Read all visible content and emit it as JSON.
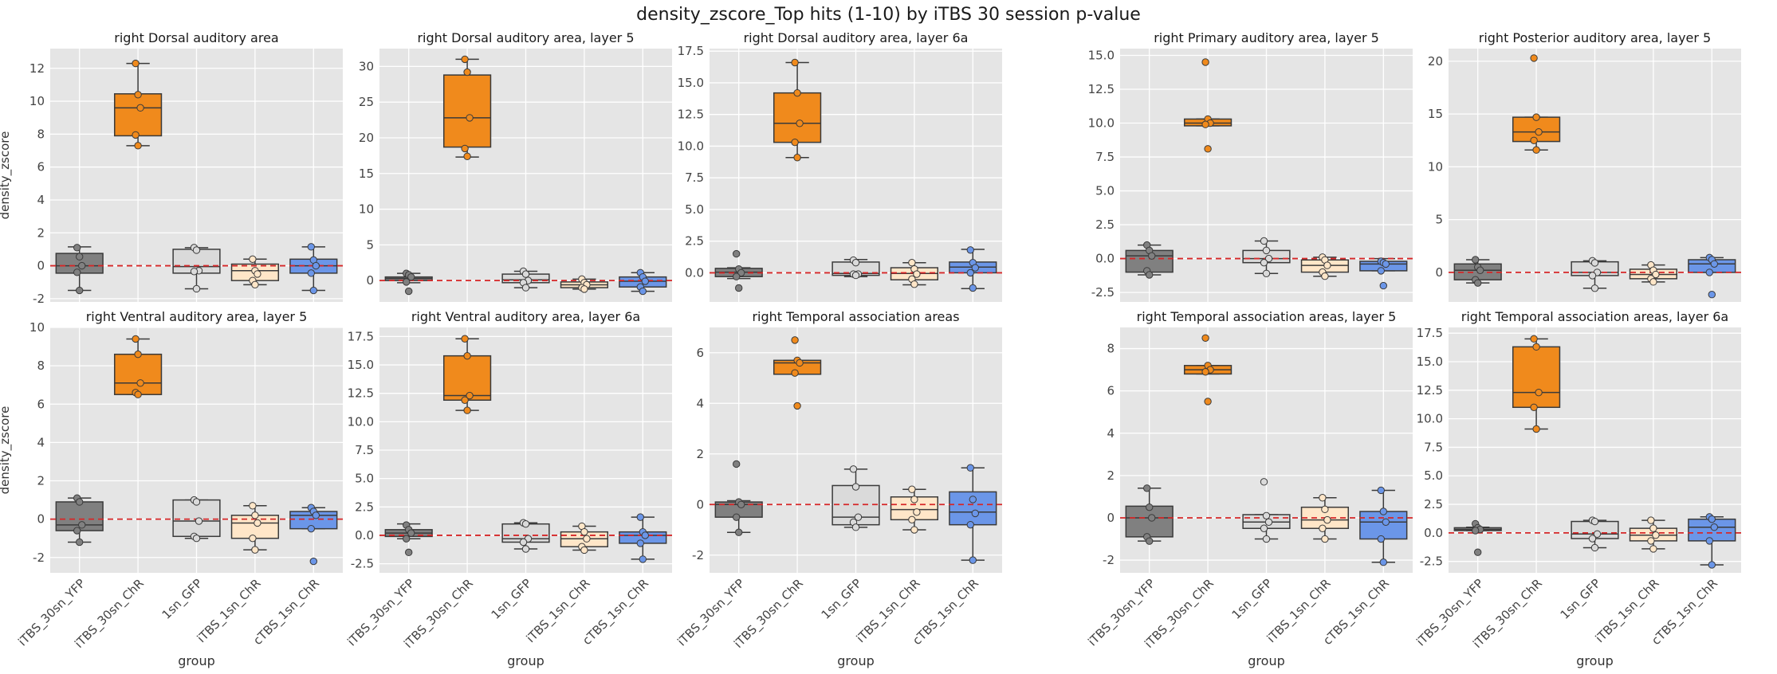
{
  "figure": {
    "title": "density_zscore_Top hits (1-10) by iTBS 30 session p-value",
    "colors": {
      "panel_bg": "#e5e5e5",
      "grid": "#ffffff",
      "zero_line": "#d62728",
      "box_edge": "#3a3a3a",
      "groups": [
        "#808080",
        "#f08a1c",
        "#dadada",
        "#ffe6c8",
        "#6b96e8"
      ]
    }
  },
  "chart_data": [
    {
      "type": "box",
      "title": "right Dorsal auditory area",
      "xlabel": "",
      "ylabel": "density_zscore",
      "categories": [
        "iTBS_30sn_YFP",
        "iTBS_30sn_ChR",
        "1sn_GFP",
        "iTBS_1sn_ChR",
        "cTBS_1sn_ChR"
      ],
      "ylim": [
        -2.2,
        13.2
      ],
      "yticks": [
        -2,
        0,
        2,
        4,
        6,
        8,
        10,
        12
      ],
      "show_xticklabels": false,
      "show_xlabel": false,
      "boxes": [
        {
          "q1": -0.45,
          "median": 0.0,
          "q3": 0.75,
          "wlo": -1.5,
          "whi": 1.15
        },
        {
          "q1": 7.9,
          "median": 9.6,
          "q3": 10.45,
          "wlo": 7.3,
          "whi": 12.3
        },
        {
          "q1": -0.45,
          "median": -0.05,
          "q3": 1.0,
          "wlo": -1.4,
          "whi": 1.1
        },
        {
          "q1": -0.9,
          "median": -0.3,
          "q3": 0.1,
          "wlo": -1.15,
          "whi": 0.4
        },
        {
          "q1": -0.45,
          "median": 0.0,
          "q3": 0.4,
          "wlo": -1.5,
          "whi": 1.15
        }
      ],
      "points": [
        [
          1.1,
          0.55,
          0.0,
          -0.4,
          -1.5
        ],
        [
          12.3,
          10.4,
          9.6,
          7.95,
          7.3
        ],
        [
          1.1,
          0.95,
          -0.3,
          -0.35,
          -1.4
        ],
        [
          0.4,
          -0.3,
          -0.5,
          -0.9,
          -1.15
        ],
        [
          1.15,
          0.35,
          0.0,
          -0.45,
          -1.5
        ]
      ]
    },
    {
      "type": "box",
      "title": "right Dorsal auditory area, layer 5",
      "xlabel": "",
      "ylabel": "",
      "categories": [
        "iTBS_30sn_YFP",
        "iTBS_30sn_ChR",
        "1sn_GFP",
        "iTBS_1sn_ChR",
        "cTBS_1sn_ChR"
      ],
      "ylim": [
        -3,
        32.5
      ],
      "yticks": [
        0,
        5,
        10,
        15,
        20,
        25,
        30
      ],
      "show_xticklabels": false,
      "show_xlabel": false,
      "boxes": [
        {
          "q1": 0.0,
          "median": 0.3,
          "q3": 0.5,
          "wlo": -0.3,
          "whi": 1.0
        },
        {
          "q1": 18.7,
          "median": 22.8,
          "q3": 28.8,
          "wlo": 17.3,
          "whi": 31.0
        },
        {
          "q1": -0.3,
          "median": 0.1,
          "q3": 0.9,
          "wlo": -1.0,
          "whi": 1.3
        },
        {
          "q1": -1.0,
          "median": -0.6,
          "q3": -0.2,
          "wlo": -1.2,
          "whi": 0.2
        },
        {
          "q1": -0.9,
          "median": -0.1,
          "q3": 0.5,
          "wlo": -1.5,
          "whi": 1.1
        }
      ],
      "points": [
        [
          1.0,
          0.8,
          0.5,
          -0.2,
          -1.5
        ],
        [
          31.0,
          29.2,
          22.8,
          18.5,
          17.4
        ],
        [
          1.3,
          0.9,
          0.0,
          -0.3,
          -1.0
        ],
        [
          0.2,
          -0.3,
          -0.6,
          -1.0,
          -1.2
        ],
        [
          1.1,
          0.5,
          -0.1,
          -0.9,
          -1.5
        ]
      ]
    },
    {
      "type": "box",
      "title": "right Dorsal auditory area, layer 6a",
      "xlabel": "",
      "ylabel": "",
      "categories": [
        "iTBS_30sn_YFP",
        "iTBS_30sn_ChR",
        "1sn_GFP",
        "iTBS_1sn_ChR",
        "cTBS_1sn_ChR"
      ],
      "ylim": [
        -2.3,
        17.7
      ],
      "yticks": [
        0.0,
        2.5,
        5.0,
        7.5,
        10.0,
        12.5,
        15.0,
        17.5
      ],
      "show_xticklabels": false,
      "show_xlabel": false,
      "boxes": [
        {
          "q1": -0.3,
          "median": 0.05,
          "q3": 0.35,
          "wlo": -0.45,
          "whi": 0.4
        },
        {
          "q1": 10.3,
          "median": 11.8,
          "q3": 14.2,
          "wlo": 9.1,
          "whi": 16.6
        },
        {
          "q1": -0.2,
          "median": -0.05,
          "q3": 0.85,
          "wlo": -0.3,
          "whi": 1.05
        },
        {
          "q1": -0.55,
          "median": -0.05,
          "q3": 0.4,
          "wlo": -0.95,
          "whi": 0.8
        },
        {
          "q1": 0.0,
          "median": 0.45,
          "q3": 0.85,
          "wlo": -1.25,
          "whi": 1.85
        }
      ],
      "points": [
        [
          1.5,
          0.3,
          0.0,
          -0.3,
          -1.2
        ],
        [
          16.6,
          14.2,
          11.8,
          10.3,
          9.1
        ],
        [
          1.0,
          0.8,
          -0.1,
          -0.1,
          -0.2
        ],
        [
          0.8,
          0.3,
          -0.1,
          -0.5,
          -0.9
        ],
        [
          1.8,
          0.8,
          0.4,
          0.0,
          -1.2
        ]
      ]
    },
    {
      "type": "box",
      "title": "right Primary auditory area, layer 5",
      "xlabel": "",
      "ylabel": "",
      "categories": [
        "iTBS_30sn_YFP",
        "iTBS_30sn_ChR",
        "1sn_GFP",
        "iTBS_1sn_ChR",
        "cTBS_1sn_ChR"
      ],
      "ylim": [
        -3.2,
        15.5
      ],
      "yticks": [
        -2.5,
        0.0,
        2.5,
        5.0,
        7.5,
        10.0,
        12.5,
        15.0
      ],
      "show_xticklabels": false,
      "show_xlabel": false,
      "boxes": [
        {
          "q1": -1.0,
          "median": 0.2,
          "q3": 0.6,
          "wlo": -1.2,
          "whi": 1.0
        },
        {
          "q1": 9.8,
          "median": 10.0,
          "q3": 10.3,
          "wlo": 9.8,
          "whi": 10.3
        },
        {
          "q1": -0.3,
          "median": 0.0,
          "q3": 0.6,
          "wlo": -1.1,
          "whi": 1.3
        },
        {
          "q1": -1.0,
          "median": -0.5,
          "q3": -0.1,
          "wlo": -1.3,
          "whi": 0.1
        },
        {
          "q1": -0.9,
          "median": -0.4,
          "q3": -0.2,
          "wlo": -0.9,
          "whi": 0.0
        }
      ],
      "points": [
        [
          1.0,
          0.6,
          0.2,
          -0.9,
          -1.2
        ],
        [
          14.5,
          10.3,
          10.0,
          9.9,
          8.1
        ],
        [
          1.3,
          0.6,
          0.0,
          -0.3,
          -1.1
        ],
        [
          0.1,
          -0.1,
          -0.5,
          -1.0,
          -1.3
        ],
        [
          -0.2,
          -0.3,
          -0.4,
          -0.9,
          -2.0
        ]
      ]
    },
    {
      "type": "box",
      "title": "right Posterior auditory area, layer 5",
      "xlabel": "",
      "ylabel": "",
      "categories": [
        "iTBS_30sn_YFP",
        "iTBS_30sn_ChR",
        "1sn_GFP",
        "iTBS_1sn_ChR",
        "cTBS_1sn_ChR"
      ],
      "ylim": [
        -2.8,
        21.2
      ],
      "yticks": [
        0,
        5,
        10,
        15,
        20
      ],
      "show_xticklabels": false,
      "show_xlabel": false,
      "boxes": [
        {
          "q1": -0.7,
          "median": 0.2,
          "q3": 0.8,
          "wlo": -1.0,
          "whi": 1.2
        },
        {
          "q1": 12.4,
          "median": 13.3,
          "q3": 14.7,
          "wlo": 11.6,
          "whi": 14.7
        },
        {
          "q1": -0.3,
          "median": 0.0,
          "q3": 1.0,
          "wlo": -1.5,
          "whi": 1.1
        },
        {
          "q1": -0.6,
          "median": -0.2,
          "q3": 0.3,
          "wlo": -0.9,
          "whi": 0.7
        },
        {
          "q1": 0.0,
          "median": 0.8,
          "q3": 1.2,
          "wlo": 0.0,
          "whi": 1.4
        }
      ],
      "points": [
        [
          1.2,
          0.5,
          0.2,
          -0.7,
          -1.0
        ],
        [
          20.3,
          14.7,
          13.3,
          12.5,
          11.6
        ],
        [
          1.1,
          0.9,
          0.0,
          -0.3,
          -1.5
        ],
        [
          0.7,
          0.2,
          -0.2,
          -0.6,
          -0.9
        ],
        [
          1.4,
          1.2,
          0.8,
          0.0,
          -2.1
        ]
      ]
    },
    {
      "type": "box",
      "title": "right Ventral auditory area, layer 5",
      "xlabel": "group",
      "ylabel": "density_zscore",
      "categories": [
        "iTBS_30sn_YFP",
        "iTBS_30sn_ChR",
        "1sn_GFP",
        "iTBS_1sn_ChR",
        "cTBS_1sn_ChR"
      ],
      "ylim": [
        -2.8,
        10.0
      ],
      "yticks": [
        -2,
        0,
        2,
        4,
        6,
        8,
        10
      ],
      "show_xticklabels": true,
      "show_xlabel": true,
      "boxes": [
        {
          "q1": -0.6,
          "median": -0.3,
          "q3": 0.9,
          "wlo": -1.2,
          "whi": 1.1
        },
        {
          "q1": 6.5,
          "median": 7.1,
          "q3": 8.6,
          "wlo": 6.5,
          "whi": 9.4
        },
        {
          "q1": -0.9,
          "median": -0.1,
          "q3": 1.0,
          "wlo": -1.0,
          "whi": 1.0
        },
        {
          "q1": -1.0,
          "median": -0.2,
          "q3": 0.2,
          "wlo": -1.6,
          "whi": 0.7
        },
        {
          "q1": -0.5,
          "median": 0.2,
          "q3": 0.4,
          "wlo": -0.5,
          "whi": 0.6
        }
      ],
      "points": [
        [
          1.1,
          0.9,
          -0.3,
          -0.6,
          -1.2
        ],
        [
          9.4,
          8.6,
          7.1,
          6.6,
          6.5
        ],
        [
          1.0,
          0.9,
          -0.1,
          -0.9,
          -1.0
        ],
        [
          0.7,
          0.2,
          -0.2,
          -1.0,
          -1.6
        ],
        [
          0.6,
          0.4,
          0.2,
          -0.5,
          -2.2
        ]
      ]
    },
    {
      "type": "box",
      "title": "right Ventral auditory area, layer 6a",
      "xlabel": "group",
      "ylabel": "",
      "categories": [
        "iTBS_30sn_YFP",
        "iTBS_30sn_ChR",
        "1sn_GFP",
        "iTBS_1sn_ChR",
        "cTBS_1sn_ChR"
      ],
      "ylim": [
        -3.3,
        18.3
      ],
      "yticks": [
        -2.5,
        0.0,
        2.5,
        5.0,
        7.5,
        10.0,
        12.5,
        15.0,
        17.5
      ],
      "show_xticklabels": true,
      "show_xlabel": true,
      "boxes": [
        {
          "q1": -0.1,
          "median": 0.2,
          "q3": 0.5,
          "wlo": -0.3,
          "whi": 1.0
        },
        {
          "q1": 11.9,
          "median": 12.3,
          "q3": 15.8,
          "wlo": 11.0,
          "whi": 17.3
        },
        {
          "q1": -0.6,
          "median": -0.3,
          "q3": 1.0,
          "wlo": -1.2,
          "whi": 1.1
        },
        {
          "q1": -1.0,
          "median": -0.3,
          "q3": 0.3,
          "wlo": -1.3,
          "whi": 0.8
        },
        {
          "q1": -0.7,
          "median": 0.0,
          "q3": 0.3,
          "wlo": -2.1,
          "whi": 1.6
        }
      ],
      "points": [
        [
          0.9,
          0.5,
          0.2,
          -0.3,
          -1.5
        ],
        [
          17.3,
          15.8,
          12.3,
          11.9,
          11.0
        ],
        [
          1.1,
          1.0,
          -0.3,
          -0.6,
          -1.2
        ],
        [
          0.8,
          0.3,
          -0.3,
          -1.0,
          -1.3
        ],
        [
          1.6,
          0.3,
          0.0,
          -0.7,
          -2.1
        ]
      ]
    },
    {
      "type": "box",
      "title": "right Temporal association areas",
      "xlabel": "group",
      "ylabel": "",
      "categories": [
        "iTBS_30sn_YFP",
        "iTBS_30sn_ChR",
        "1sn_GFP",
        "iTBS_1sn_ChR",
        "cTBS_1sn_ChR"
      ],
      "ylim": [
        -2.7,
        7.0
      ],
      "yticks": [
        -2,
        0,
        2,
        4,
        6
      ],
      "show_xticklabels": true,
      "show_xlabel": true,
      "boxes": [
        {
          "q1": -0.5,
          "median": 0.0,
          "q3": 0.1,
          "wlo": -1.1,
          "whi": 0.15
        },
        {
          "q1": 5.15,
          "median": 5.6,
          "q3": 5.7,
          "wlo": 5.15,
          "whi": 5.7
        },
        {
          "q1": -0.8,
          "median": -0.5,
          "q3": 0.75,
          "wlo": -0.9,
          "whi": 1.4
        },
        {
          "q1": -0.6,
          "median": -0.2,
          "q3": 0.3,
          "wlo": -1.0,
          "whi": 0.6
        },
        {
          "q1": -0.8,
          "median": -0.3,
          "q3": 0.5,
          "wlo": -2.2,
          "whi": 1.45
        }
      ],
      "points": [
        [
          1.6,
          0.1,
          0.0,
          -0.5,
          -1.1
        ],
        [
          6.5,
          5.7,
          5.6,
          5.2,
          3.9
        ],
        [
          1.4,
          0.7,
          -0.5,
          -0.7,
          -0.9
        ],
        [
          0.6,
          0.2,
          -0.3,
          -0.6,
          -1.0
        ],
        [
          1.45,
          0.2,
          -0.35,
          -0.8,
          -2.2
        ]
      ]
    },
    {
      "type": "box",
      "title": "right Temporal association areas, layer 5",
      "xlabel": "group",
      "ylabel": "",
      "categories": [
        "iTBS_30sn_YFP",
        "iTBS_30sn_ChR",
        "1sn_GFP",
        "iTBS_1sn_ChR",
        "cTBS_1sn_ChR"
      ],
      "ylim": [
        -2.6,
        9.0
      ],
      "yticks": [
        -2,
        0,
        2,
        4,
        6,
        8
      ],
      "show_xticklabels": true,
      "show_xlabel": true,
      "boxes": [
        {
          "q1": -0.9,
          "median": 0.0,
          "q3": 0.55,
          "wlo": -1.1,
          "whi": 1.4
        },
        {
          "q1": 6.8,
          "median": 7.0,
          "q3": 7.2,
          "wlo": 6.8,
          "whi": 7.2
        },
        {
          "q1": -0.5,
          "median": -0.2,
          "q3": 0.15,
          "wlo": -1.0,
          "whi": 0.15
        },
        {
          "q1": -0.5,
          "median": -0.1,
          "q3": 0.5,
          "wlo": -1.0,
          "whi": 0.95
        },
        {
          "q1": -1.0,
          "median": -0.2,
          "q3": 0.3,
          "wlo": -2.1,
          "whi": 1.3
        }
      ],
      "points": [
        [
          1.4,
          0.5,
          0.0,
          -0.9,
          -1.1
        ],
        [
          8.5,
          7.2,
          7.0,
          6.9,
          5.5
        ],
        [
          1.7,
          0.1,
          -0.2,
          -0.5,
          -1.0
        ],
        [
          0.95,
          0.4,
          -0.1,
          -0.5,
          -1.0
        ],
        [
          1.3,
          0.3,
          -0.2,
          -1.0,
          -2.1
        ]
      ]
    },
    {
      "type": "box",
      "title": "right Temporal association areas, layer 6a",
      "xlabel": "group",
      "ylabel": "",
      "categories": [
        "iTBS_30sn_YFP",
        "iTBS_30sn_ChR",
        "1sn_GFP",
        "iTBS_1sn_ChR",
        "cTBS_1sn_ChR"
      ],
      "ylim": [
        -3.5,
        18.0
      ],
      "yticks": [
        -2.5,
        0.0,
        2.5,
        5.0,
        7.5,
        10.0,
        12.5,
        15.0,
        17.5
      ],
      "show_xticklabels": true,
      "show_xlabel": true,
      "boxes": [
        {
          "q1": 0.2,
          "median": 0.3,
          "q3": 0.45,
          "wlo": 0.2,
          "whi": 0.5
        },
        {
          "q1": 11.0,
          "median": 12.3,
          "q3": 16.3,
          "wlo": 9.1,
          "whi": 17.0
        },
        {
          "q1": -0.5,
          "median": -0.1,
          "q3": 1.0,
          "wlo": -1.3,
          "whi": 1.1
        },
        {
          "q1": -0.7,
          "median": -0.2,
          "q3": 0.4,
          "wlo": -1.4,
          "whi": 1.1
        },
        {
          "q1": -0.7,
          "median": 0.5,
          "q3": 1.2,
          "wlo": -2.8,
          "whi": 1.4
        }
      ],
      "points": [
        [
          0.8,
          0.45,
          0.3,
          0.2,
          -1.7
        ],
        [
          17.0,
          16.3,
          12.3,
          11.0,
          9.1
        ],
        [
          1.1,
          1.0,
          -0.1,
          -0.5,
          -1.3
        ],
        [
          1.1,
          0.4,
          -0.2,
          -0.7,
          -1.4
        ],
        [
          1.4,
          1.2,
          0.5,
          -0.7,
          -2.8
        ]
      ]
    }
  ]
}
